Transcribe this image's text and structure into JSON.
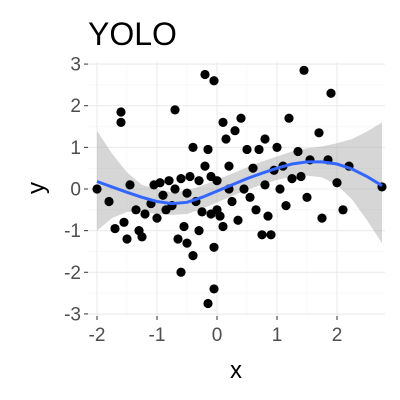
{
  "chart_data": {
    "type": "scatter",
    "title": "YOLO",
    "xlabel": "x",
    "ylabel": "y",
    "xlim": [
      -2.15,
      2.8
    ],
    "ylim": [
      -3.05,
      3.05
    ],
    "x_ticks": [
      -2,
      -1,
      0,
      1,
      2
    ],
    "y_ticks": [
      -3,
      -2,
      -1,
      0,
      1,
      2,
      3
    ],
    "x_tick_labels": [
      "-2",
      "-1",
      "0",
      "1",
      "2"
    ],
    "y_tick_labels": [
      "-3",
      "-2",
      "-1",
      "0",
      "1",
      "2",
      "3"
    ],
    "grid": true,
    "point_color": "#000000",
    "smooth_color": "#3366ff",
    "ribbon_color": "#999999",
    "points": [
      {
        "x": -2.0,
        "y": 0.0
      },
      {
        "x": -1.8,
        "y": -0.3
      },
      {
        "x": -1.7,
        "y": -0.95
      },
      {
        "x": -1.6,
        "y": 1.85
      },
      {
        "x": -1.6,
        "y": 1.6
      },
      {
        "x": -1.55,
        "y": -0.8
      },
      {
        "x": -1.5,
        "y": -1.2
      },
      {
        "x": -1.45,
        "y": 0.1
      },
      {
        "x": -1.35,
        "y": -0.5
      },
      {
        "x": -1.3,
        "y": -1.0
      },
      {
        "x": -1.25,
        "y": -1.15
      },
      {
        "x": -1.2,
        "y": -0.6
      },
      {
        "x": -1.1,
        "y": -0.35
      },
      {
        "x": -1.05,
        "y": 0.1
      },
      {
        "x": -1.0,
        "y": -0.7
      },
      {
        "x": -0.95,
        "y": 0.15
      },
      {
        "x": -0.9,
        "y": -0.15
      },
      {
        "x": -0.85,
        "y": -0.5
      },
      {
        "x": -0.8,
        "y": 0.2
      },
      {
        "x": -0.75,
        "y": -0.4
      },
      {
        "x": -0.7,
        "y": 0.0
      },
      {
        "x": -0.7,
        "y": 1.9
      },
      {
        "x": -0.65,
        "y": -1.2
      },
      {
        "x": -0.6,
        "y": 0.25
      },
      {
        "x": -0.6,
        "y": -2.0
      },
      {
        "x": -0.55,
        "y": -0.9
      },
      {
        "x": -0.5,
        "y": -0.1
      },
      {
        "x": -0.5,
        "y": -1.3
      },
      {
        "x": -0.45,
        "y": 0.3
      },
      {
        "x": -0.4,
        "y": -1.6
      },
      {
        "x": -0.4,
        "y": 1.0
      },
      {
        "x": -0.35,
        "y": -0.3
      },
      {
        "x": -0.3,
        "y": 0.2
      },
      {
        "x": -0.3,
        "y": -1.0
      },
      {
        "x": -0.25,
        "y": -0.55
      },
      {
        "x": -0.2,
        "y": 0.55
      },
      {
        "x": -0.2,
        "y": 2.75
      },
      {
        "x": -0.15,
        "y": -2.75
      },
      {
        "x": -0.15,
        "y": 0.95
      },
      {
        "x": -0.1,
        "y": 0.3
      },
      {
        "x": -0.1,
        "y": -0.6
      },
      {
        "x": -0.05,
        "y": -1.4
      },
      {
        "x": -0.05,
        "y": -2.4
      },
      {
        "x": -0.05,
        "y": 2.6
      },
      {
        "x": 0.0,
        "y": 0.2
      },
      {
        "x": 0.0,
        "y": -0.5
      },
      {
        "x": 0.05,
        "y": -0.65
      },
      {
        "x": 0.1,
        "y": 1.6
      },
      {
        "x": 0.1,
        "y": -0.9
      },
      {
        "x": 0.15,
        "y": 1.2
      },
      {
        "x": 0.2,
        "y": 0.55
      },
      {
        "x": 0.2,
        "y": 0.0
      },
      {
        "x": 0.25,
        "y": -0.3
      },
      {
        "x": 0.3,
        "y": 1.4
      },
      {
        "x": 0.35,
        "y": -0.75
      },
      {
        "x": 0.4,
        "y": 1.7
      },
      {
        "x": 0.45,
        "y": 0.0
      },
      {
        "x": 0.5,
        "y": 0.95
      },
      {
        "x": 0.55,
        "y": -0.2
      },
      {
        "x": 0.6,
        "y": 0.5
      },
      {
        "x": 0.65,
        "y": -0.5
      },
      {
        "x": 0.7,
        "y": 0.95
      },
      {
        "x": 0.75,
        "y": -1.1
      },
      {
        "x": 0.8,
        "y": 1.2
      },
      {
        "x": 0.8,
        "y": 0.1
      },
      {
        "x": 0.85,
        "y": -0.65
      },
      {
        "x": 0.9,
        "y": -1.1
      },
      {
        "x": 0.95,
        "y": 0.45
      },
      {
        "x": 1.0,
        "y": 1.0
      },
      {
        "x": 1.05,
        "y": 0.0
      },
      {
        "x": 1.1,
        "y": 0.55
      },
      {
        "x": 1.15,
        "y": -0.4
      },
      {
        "x": 1.2,
        "y": 1.7
      },
      {
        "x": 1.25,
        "y": 0.25
      },
      {
        "x": 1.35,
        "y": 0.9
      },
      {
        "x": 1.4,
        "y": 0.3
      },
      {
        "x": 1.45,
        "y": 2.85
      },
      {
        "x": 1.5,
        "y": -0.2
      },
      {
        "x": 1.55,
        "y": 0.7
      },
      {
        "x": 1.7,
        "y": 1.35
      },
      {
        "x": 1.75,
        "y": -0.7
      },
      {
        "x": 1.85,
        "y": 0.7
      },
      {
        "x": 1.9,
        "y": 2.3
      },
      {
        "x": 2.0,
        "y": 0.15
      },
      {
        "x": 2.1,
        "y": -0.5
      },
      {
        "x": 2.2,
        "y": 0.55
      },
      {
        "x": 2.75,
        "y": 0.05
      }
    ],
    "smooth": {
      "x": [
        -2.0,
        -1.75,
        -1.5,
        -1.25,
        -1.0,
        -0.75,
        -0.5,
        -0.25,
        0.0,
        0.25,
        0.5,
        0.75,
        1.0,
        1.25,
        1.5,
        1.75,
        2.0,
        2.25,
        2.5,
        2.75
      ],
      "y": [
        0.18,
        0.05,
        -0.08,
        -0.2,
        -0.3,
        -0.35,
        -0.32,
        -0.2,
        -0.05,
        0.1,
        0.25,
        0.38,
        0.5,
        0.6,
        0.65,
        0.65,
        0.6,
        0.48,
        0.3,
        0.08
      ],
      "ymin": [
        -1.0,
        -0.7,
        -0.55,
        -0.55,
        -0.6,
        -0.62,
        -0.6,
        -0.48,
        -0.32,
        -0.17,
        -0.02,
        0.1,
        0.22,
        0.3,
        0.32,
        0.28,
        0.1,
        -0.25,
        -0.75,
        -1.3
      ],
      "ymax": [
        1.4,
        0.85,
        0.4,
        0.1,
        0.0,
        -0.08,
        -0.04,
        0.08,
        0.22,
        0.37,
        0.52,
        0.66,
        0.78,
        0.9,
        0.98,
        1.02,
        1.1,
        1.2,
        1.38,
        1.6
      ]
    }
  }
}
